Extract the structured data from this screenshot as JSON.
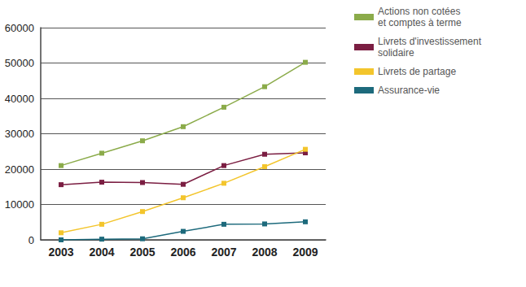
{
  "chart_data": {
    "type": "line",
    "categories": [
      "2003",
      "2004",
      "2005",
      "2006",
      "2007",
      "2008",
      "2009"
    ],
    "series": [
      {
        "name": "Actions non cotées\net comptes à terme",
        "color": "#8bab4a",
        "values": [
          21000,
          24500,
          28000,
          32000,
          37500,
          43300,
          50200
        ]
      },
      {
        "name": "Livrets d'investissement\nsolidaire",
        "color": "#7b1e42",
        "values": [
          15600,
          16300,
          16200,
          15700,
          21000,
          24200,
          24600
        ]
      },
      {
        "name": "Livrets de partage",
        "color": "#f3c52c",
        "values": [
          2000,
          4400,
          8000,
          11900,
          16000,
          20700,
          25600
        ]
      },
      {
        "name": "Assurance-vie",
        "color": "#1d6a7c",
        "values": [
          0,
          200,
          300,
          2400,
          4400,
          4500,
          5100
        ]
      }
    ],
    "ylim": [
      0,
      60000
    ],
    "yticks": [
      0,
      10000,
      20000,
      30000,
      40000,
      50000,
      60000
    ],
    "grid": true,
    "legend": "top-right",
    "marker": "square"
  }
}
